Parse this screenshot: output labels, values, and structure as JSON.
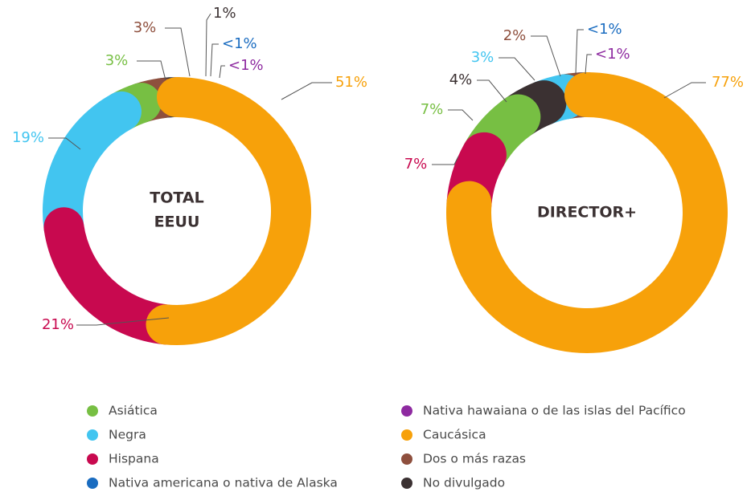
{
  "chart_data": [
    {
      "type": "pie",
      "title": [
        "TOTAL",
        "EEUU"
      ],
      "categories": [
        "Caucásica",
        "Hispana",
        "Negra",
        "Asiática",
        "Dos o más razas",
        "No divulgado",
        "Nativa americana o nativa de Alaska",
        "Nativa hawaiana o de las islas del Pacífico"
      ],
      "values": [
        51,
        21,
        19,
        3,
        3,
        1,
        0.5,
        0.5
      ],
      "value_labels": [
        "51%",
        "21%",
        "19%",
        "3%",
        "3%",
        "1%",
        "<1%",
        "<1%"
      ],
      "colors": [
        "#f7a10a",
        "#c8094f",
        "#42c5f0",
        "#77bf43",
        "#8e4f3d",
        "#3b3132",
        "#1a6cc0",
        "#8e2aa0"
      ]
    },
    {
      "type": "pie",
      "title": [
        "DIRECTOR+"
      ],
      "categories": [
        "Caucásica",
        "Hispana",
        "Asiática",
        "No divulgado",
        "Negra",
        "Dos o más razas",
        "Nativa americana o nativa de Alaska",
        "Nativa hawaiana o de las islas del Pacífico"
      ],
      "values": [
        77,
        7,
        7,
        4,
        3,
        2,
        0.5,
        0.5
      ],
      "value_labels": [
        "77%",
        "7%",
        "7%",
        "4%",
        "3%",
        "2%",
        "<1%",
        "<1%"
      ],
      "colors": [
        "#f7a10a",
        "#c8094f",
        "#77bf43",
        "#3b3132",
        "#42c5f0",
        "#8e4f3d",
        "#1a6cc0",
        "#8e2aa0"
      ]
    }
  ],
  "legend": [
    {
      "name": "Asiática",
      "color": "#77bf43"
    },
    {
      "name": "Negra",
      "color": "#42c5f0"
    },
    {
      "name": "Hispana",
      "color": "#c8094f"
    },
    {
      "name": "Nativa americana o nativa de Alaska",
      "color": "#1a6cc0"
    },
    {
      "name": "Nativa hawaiana o de las islas del Pacífico",
      "color": "#8e2aa0"
    },
    {
      "name": "Caucásica",
      "color": "#f7a10a"
    },
    {
      "name": "Dos o más razas",
      "color": "#8e4f3d"
    },
    {
      "name": "No divulgado",
      "color": "#3b3132"
    }
  ]
}
